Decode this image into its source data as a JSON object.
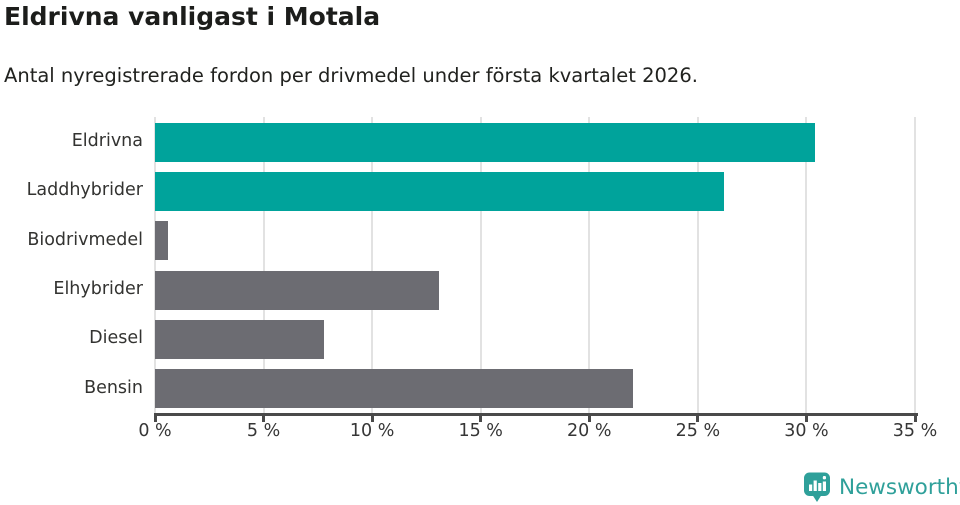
{
  "header": {
    "title": "Eldrivna vanligast i Motala",
    "subtitle": "Antal nyregistrerade fordon per drivmedel under första kvartalet 2026."
  },
  "chart_data": {
    "type": "bar",
    "orientation": "horizontal",
    "title": "Eldrivna vanligast i Motala",
    "subtitle": "Antal nyregistrerade fordon per drivmedel under första kvartalet 2026.",
    "categories": [
      "Eldrivna",
      "Laddhybrider",
      "Biodrivmedel",
      "Elhybrider",
      "Diesel",
      "Bensin"
    ],
    "values": [
      30.4,
      26.2,
      0.6,
      13.1,
      7.8,
      22.0
    ],
    "unit": "%",
    "xlim": [
      0,
      35
    ],
    "x_ticks": [
      0,
      5,
      10,
      15,
      20,
      25,
      30,
      35
    ],
    "x_tick_labels": [
      "0 %",
      "5 %",
      "10 %",
      "15 %",
      "20 %",
      "25 %",
      "30 %",
      "35 %"
    ],
    "bar_colors": [
      "#00a39b",
      "#00a39b",
      "#6c6c72",
      "#6c6c72",
      "#6c6c72",
      "#6c6c72"
    ],
    "grid": "vertical-gridlines-on",
    "legend": "none",
    "highlight_color": "#00a39b",
    "default_color": "#6c6c72"
  },
  "colors": {
    "background": "#ffffff",
    "title_text": "#1c1d1b",
    "subtitle_text": "#21221f",
    "category_label_text": "#333331",
    "tick_label_text": "#363636",
    "gridline": "#e2e2e2",
    "axis_line": "#4a4a4a",
    "brand_teal": "#2fa09a"
  },
  "footer": {
    "brand": "Newsworthy",
    "logo_icon": "bar-chart-speech-bubble-icon"
  }
}
